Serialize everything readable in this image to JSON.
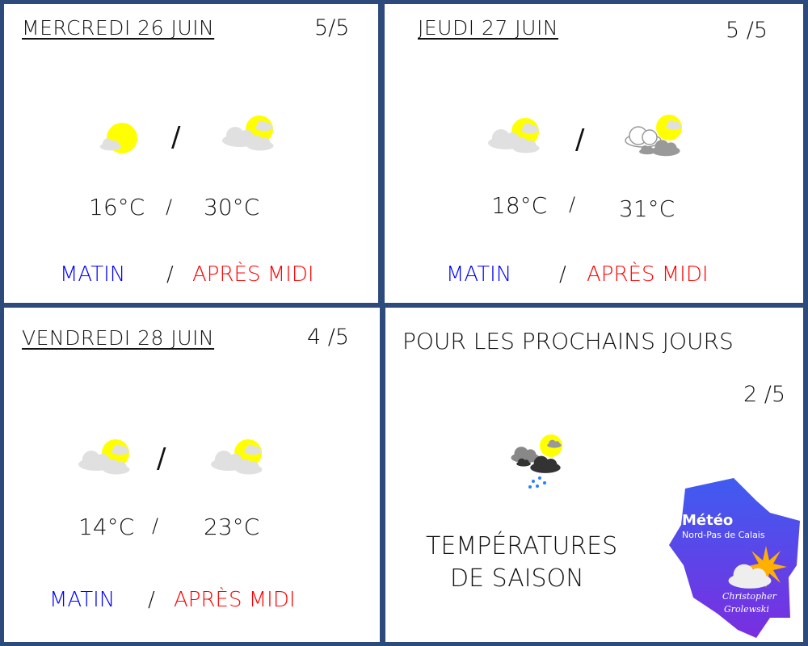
{
  "days": [
    {
      "title": "MERCREDI 26 JUIN",
      "rating": "5/5",
      "icon_morning": "sun-small-cloud-icon",
      "icon_afternoon": "partly-cloudy-icon",
      "temp_morning": "16°C",
      "temp_afternoon": "30°C",
      "sep": "/"
    },
    {
      "title": "JEUDI 27 JUIN",
      "rating": "5 /5",
      "icon_morning": "partly-cloudy-icon",
      "icon_afternoon": "cloudy-sun-dark-icon",
      "temp_morning": "18°C",
      "temp_afternoon": "31°C",
      "sep": "/"
    },
    {
      "title": "VENDREDI 28 JUIN",
      "rating": "4 /5",
      "icon_morning": "partly-cloudy-icon",
      "icon_afternoon": "partly-cloudy-icon",
      "temp_morning": "14°C",
      "temp_afternoon": "23°C",
      "sep": "/"
    }
  ],
  "periods": {
    "morning": "MATIN",
    "afternoon": "APRÈS MIDI",
    "sep": "/"
  },
  "outlook": {
    "title": "POUR LES PROCHAINS JOURS",
    "rating": "2 /5",
    "icon": "rain-cloud-sun-icon",
    "line1": "TEMPÉRATURES",
    "line2": "DE SAISON"
  },
  "logo": {
    "title": "Météo",
    "subtitle": "Nord-Pas de Calais",
    "author1": "Christopher",
    "author2": "Grolewski"
  },
  "colors": {
    "border": "#2d4a7d",
    "morning": "#0000ff",
    "afternoon": "#ff0000",
    "sun": "#ffff00",
    "cloud": "#e0e0e0"
  }
}
